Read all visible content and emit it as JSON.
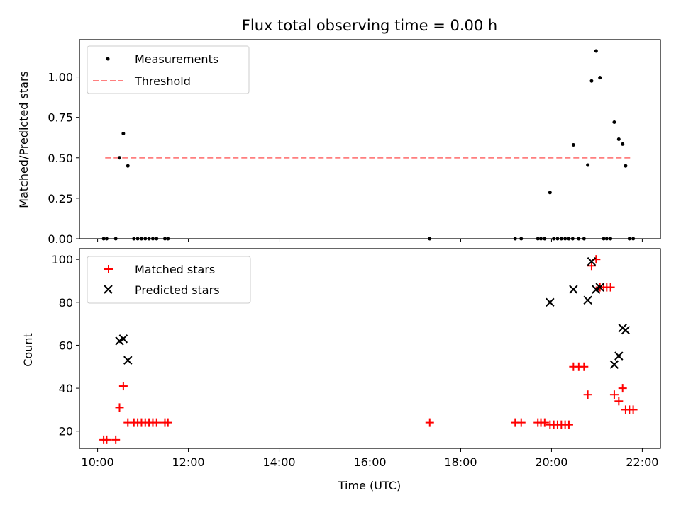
{
  "chart_data": [
    {
      "type": "scatter",
      "title": "Flux total observing time = 0.00 h",
      "xlabel": "",
      "ylabel": "Matched/Predicted stars",
      "ylim": [
        0,
        1.23
      ],
      "yticks": [
        0,
        0.25,
        0.5,
        0.75,
        1.0
      ],
      "ytick_labels": [
        "0.00",
        "0.25",
        "0.50",
        "0.75",
        "1.00"
      ],
      "grid": false,
      "legend": "top-left",
      "series": [
        {
          "name": "Measurements",
          "marker": "dot",
          "color": "#000000",
          "points": [
            [
              10.133,
              0
            ],
            [
              10.2,
              0
            ],
            [
              10.4,
              0
            ],
            [
              10.483,
              0.5
            ],
            [
              10.567,
              0.65
            ],
            [
              10.667,
              0.45
            ],
            [
              10.8,
              0
            ],
            [
              10.883,
              0
            ],
            [
              10.967,
              0
            ],
            [
              11.05,
              0
            ],
            [
              11.133,
              0
            ],
            [
              11.217,
              0
            ],
            [
              11.3,
              0
            ],
            [
              11.483,
              0
            ],
            [
              11.55,
              0
            ],
            [
              17.317,
              0
            ],
            [
              19.2,
              0
            ],
            [
              19.333,
              0
            ],
            [
              19.7,
              0
            ],
            [
              19.767,
              0
            ],
            [
              19.85,
              0
            ],
            [
              19.967,
              0.285
            ],
            [
              20.05,
              0
            ],
            [
              20.133,
              0
            ],
            [
              20.217,
              0
            ],
            [
              20.3,
              0
            ],
            [
              20.383,
              0
            ],
            [
              20.467,
              0
            ],
            [
              20.483,
              0.58
            ],
            [
              20.6,
              0
            ],
            [
              20.717,
              0
            ],
            [
              20.8,
              0.455
            ],
            [
              20.883,
              0.975
            ],
            [
              20.983,
              1.16
            ],
            [
              21.067,
              0.995
            ],
            [
              21.15,
              0
            ],
            [
              21.217,
              0
            ],
            [
              21.3,
              0
            ],
            [
              21.383,
              0.72
            ],
            [
              21.483,
              0.615
            ],
            [
              21.567,
              0.585
            ],
            [
              21.633,
              0.45
            ],
            [
              21.717,
              0
            ],
            [
              21.8,
              0
            ]
          ]
        },
        {
          "name": "Threshold",
          "marker": "dashed-line",
          "color": "#ff7f7f",
          "points": [
            [
              10.167,
              0.5
            ],
            [
              21.75,
              0.5
            ]
          ]
        }
      ]
    },
    {
      "type": "scatter",
      "title": "",
      "xlabel": "Time (UTC)",
      "ylabel": "Count",
      "xlim": [
        9.6,
        22.4
      ],
      "ylim": [
        12,
        105
      ],
      "xticks": [
        10,
        12,
        14,
        16,
        18,
        20,
        22
      ],
      "xtick_labels": [
        "10:00",
        "12:00",
        "14:00",
        "16:00",
        "18:00",
        "20:00",
        "22:00"
      ],
      "yticks": [
        20,
        40,
        60,
        80,
        100
      ],
      "ytick_labels": [
        "20",
        "40",
        "60",
        "80",
        "100"
      ],
      "grid": false,
      "legend": "top-left",
      "series": [
        {
          "name": "Matched stars",
          "marker": "plus",
          "color": "#ff0000",
          "points": [
            [
              10.133,
              16
            ],
            [
              10.2,
              16
            ],
            [
              10.4,
              16
            ],
            [
              10.483,
              31
            ],
            [
              10.567,
              41
            ],
            [
              10.667,
              24
            ],
            [
              10.8,
              24
            ],
            [
              10.883,
              24
            ],
            [
              10.967,
              24
            ],
            [
              11.05,
              24
            ],
            [
              11.133,
              24
            ],
            [
              11.217,
              24
            ],
            [
              11.3,
              24
            ],
            [
              11.483,
              24
            ],
            [
              11.55,
              24
            ],
            [
              17.317,
              24
            ],
            [
              19.2,
              24
            ],
            [
              19.333,
              24
            ],
            [
              19.7,
              24
            ],
            [
              19.767,
              24
            ],
            [
              19.85,
              24
            ],
            [
              19.967,
              23
            ],
            [
              20.05,
              23
            ],
            [
              20.133,
              23
            ],
            [
              20.217,
              23
            ],
            [
              20.3,
              23
            ],
            [
              20.383,
              23
            ],
            [
              20.483,
              50
            ],
            [
              20.6,
              50
            ],
            [
              20.717,
              50
            ],
            [
              20.8,
              37
            ],
            [
              20.883,
              97
            ],
            [
              20.983,
              100
            ],
            [
              21.067,
              87
            ],
            [
              21.15,
              87
            ],
            [
              21.217,
              87
            ],
            [
              21.3,
              87
            ],
            [
              21.383,
              37
            ],
            [
              21.483,
              34
            ],
            [
              21.567,
              40
            ],
            [
              21.633,
              30
            ],
            [
              21.717,
              30
            ],
            [
              21.8,
              30
            ]
          ]
        },
        {
          "name": "Predicted stars",
          "marker": "x",
          "color": "#000000",
          "points": [
            [
              10.483,
              62
            ],
            [
              10.567,
              63
            ],
            [
              10.667,
              53
            ],
            [
              19.967,
              80
            ],
            [
              20.483,
              86
            ],
            [
              20.8,
              81
            ],
            [
              20.883,
              99
            ],
            [
              20.983,
              86
            ],
            [
              21.067,
              87
            ],
            [
              21.383,
              51
            ],
            [
              21.483,
              55
            ],
            [
              21.567,
              68
            ],
            [
              21.633,
              67
            ]
          ]
        }
      ]
    }
  ]
}
